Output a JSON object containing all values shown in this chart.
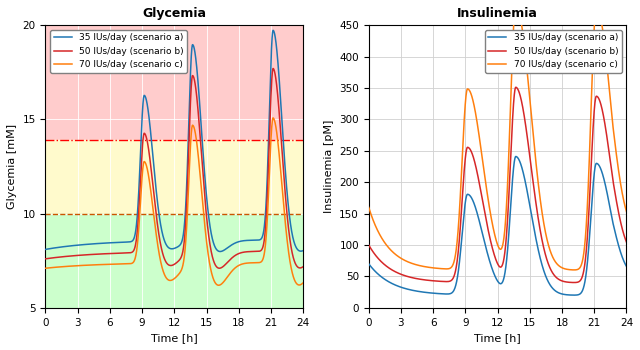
{
  "title_left": "Glycemia",
  "title_right": "Insulinemia",
  "xlabel": "Time [h]",
  "ylabel_left": "Glycemia [mM]",
  "ylabel_right": "Insulinemia [pM]",
  "xlim": [
    0,
    24
  ],
  "ylim_left": [
    5,
    20
  ],
  "ylim_right": [
    0,
    450
  ],
  "xticks": [
    0,
    3,
    6,
    9,
    12,
    15,
    18,
    21,
    24
  ],
  "yticks_left": [
    5,
    10,
    15,
    20
  ],
  "yticks_right": [
    0,
    50,
    100,
    150,
    200,
    250,
    300,
    350,
    400,
    450
  ],
  "hline_red": 13.9,
  "hline_orange": 10.0,
  "legend_labels": [
    "35 IUs/day (scenario a)",
    "50 IUs/day (scenario b)",
    "70 IUs/day (scenario c)"
  ],
  "colors": [
    "#1f77b4",
    "#d62728",
    "#ff7f0e"
  ],
  "bg_red_color": "#ffcccc",
  "bg_yellow_color": "#fffacc",
  "bg_green_color": "#ccffcc"
}
